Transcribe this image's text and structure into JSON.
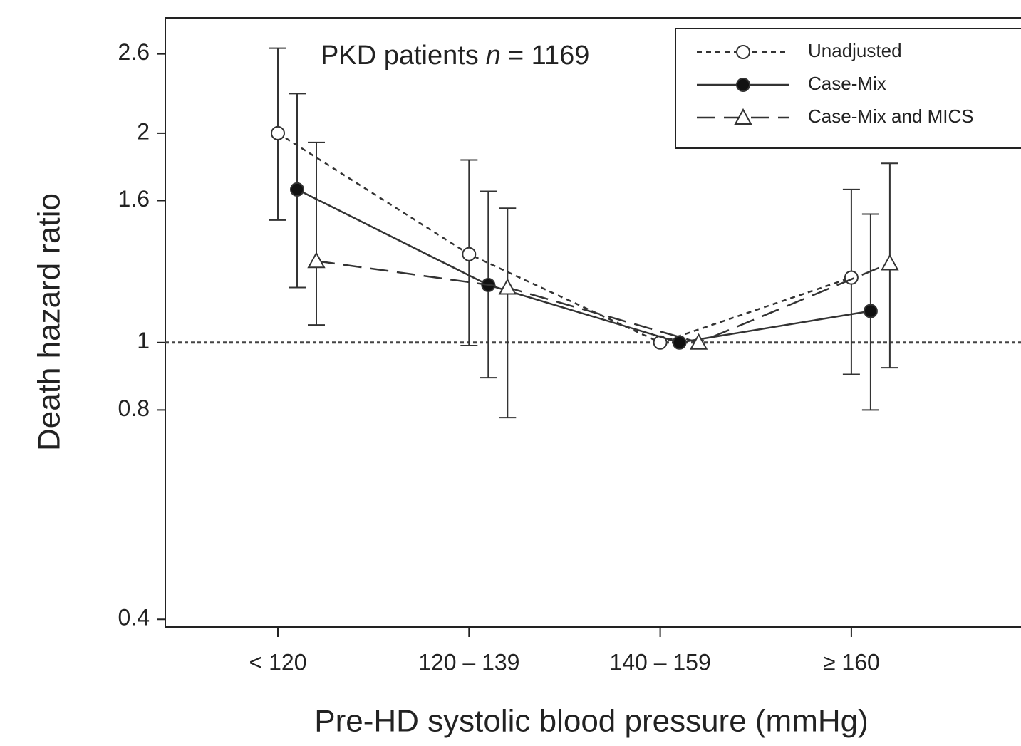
{
  "chart_data": {
    "type": "line",
    "annotation": {
      "prefix": "PKD patients",
      "variable": "n",
      "suffix": "= 1169"
    },
    "xlabel": "Pre-HD systolic blood pressure (mmHg)",
    "ylabel": "Death hazard ratio",
    "categories": [
      "< 120",
      "120 – 139",
      "140 – 159",
      "≥ 160"
    ],
    "log_y": true,
    "ylim": [
      0.39,
      2.93
    ],
    "yticks": [
      0.4,
      0.8,
      1,
      1.6,
      2,
      2.6
    ],
    "reference_line": 1,
    "legend_position": "upper right",
    "series": [
      {
        "name": "Unadjusted",
        "color": "#333333",
        "dash": "short",
        "marker": "open-circle",
        "values": [
          2.0,
          1.34,
          1.0,
          1.24
        ],
        "ci_lower": [
          1.5,
          0.99,
          null,
          0.9
        ],
        "ci_upper": [
          2.65,
          1.83,
          null,
          1.66
        ]
      },
      {
        "name": "Case-Mix",
        "color": "#333333",
        "dash": "solid",
        "marker": "filled-circle",
        "values": [
          1.66,
          1.21,
          1.0,
          1.11
        ],
        "ci_lower": [
          1.2,
          0.89,
          null,
          0.8
        ],
        "ci_upper": [
          2.28,
          1.65,
          null,
          1.53
        ]
      },
      {
        "name": "Case-Mix and MICS",
        "color": "#333333",
        "dash": "long",
        "marker": "open-triangle",
        "values": [
          1.31,
          1.2,
          1.0,
          1.3
        ],
        "ci_lower": [
          1.06,
          0.78,
          null,
          0.92
        ],
        "ci_upper": [
          1.94,
          1.56,
          null,
          1.81
        ]
      }
    ]
  }
}
